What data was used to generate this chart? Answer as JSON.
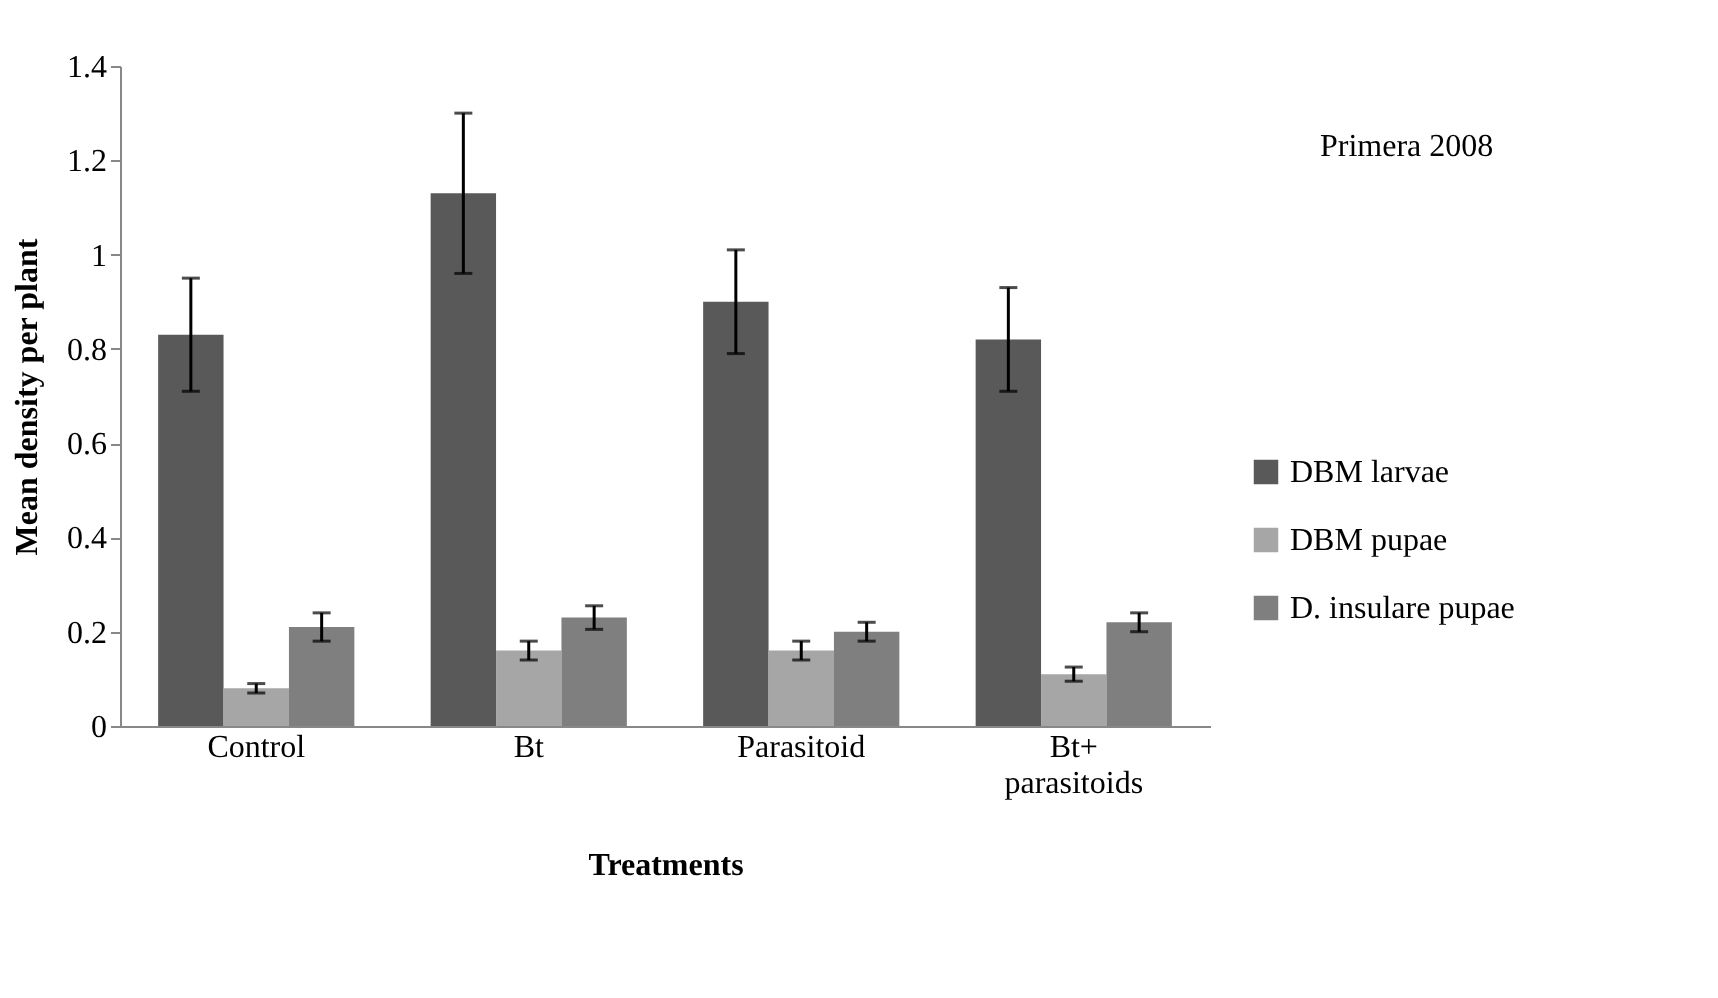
{
  "chart_data": {
    "type": "bar",
    "xlabel": "Treatments",
    "ylabel": "Mean density per plant",
    "categories": [
      "Control",
      "Bt",
      "Parasitoid",
      "Bt+ parasitoids"
    ],
    "series": [
      {
        "name": "DBM larvae",
        "color": "#595959",
        "values": [
          0.83,
          1.13,
          0.9,
          0.82
        ],
        "errors": [
          0.12,
          0.17,
          0.11,
          0.11
        ]
      },
      {
        "name": "DBM pupae",
        "color": "#a6a6a6",
        "values": [
          0.08,
          0.16,
          0.16,
          0.11
        ],
        "errors": [
          0.01,
          0.02,
          0.02,
          0.015
        ]
      },
      {
        "name": "D. insulare pupae",
        "color": "#7f7f7f",
        "values": [
          0.21,
          0.23,
          0.2,
          0.22
        ],
        "errors": [
          0.03,
          0.025,
          0.02,
          0.02
        ]
      }
    ],
    "ylim": [
      0,
      1.4
    ],
    "yticks": [
      0,
      0.2,
      0.4,
      0.6,
      0.8,
      1,
      1.2,
      1.4
    ],
    "grid": false,
    "legend": "right",
    "annotations": [
      "Primera 2008"
    ]
  }
}
